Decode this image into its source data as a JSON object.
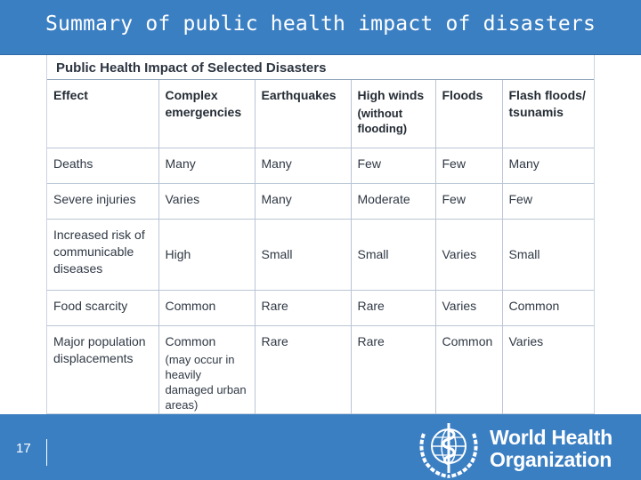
{
  "slide": {
    "title": "Summary of public health impact of disasters",
    "page_number": "17"
  },
  "table": {
    "caption": "Public Health Impact of Selected Disasters",
    "headers": [
      {
        "label": "Effect",
        "sub": ""
      },
      {
        "label": "Complex emergencies",
        "sub": ""
      },
      {
        "label": "Earthquakes",
        "sub": ""
      },
      {
        "label": "High winds",
        "sub": "(without flooding)"
      },
      {
        "label": "Floods",
        "sub": ""
      },
      {
        "label": "Flash floods/ tsunamis",
        "sub": ""
      }
    ],
    "rows": [
      {
        "effect": "Deaths",
        "values": [
          "Many",
          "Many",
          "Few",
          "Few",
          "Many"
        ]
      },
      {
        "effect": "Severe injuries",
        "values": [
          "Varies",
          "Many",
          "Moderate",
          "Few",
          "Few"
        ]
      },
      {
        "effect": "Increased risk of communicable diseases",
        "values": [
          "High",
          "Small",
          "Small",
          "Varies",
          "Small"
        ]
      },
      {
        "effect": "Food scarcity",
        "values": [
          "Common",
          "Rare",
          "Rare",
          "Varies",
          "Common"
        ]
      },
      {
        "effect": "Major population displacements",
        "values": [
          "Common",
          "Rare",
          "Rare",
          "Common",
          "Varies"
        ],
        "note": "(may occur in heavily damaged urban areas)"
      }
    ]
  },
  "logo": {
    "name": "who-emblem-icon",
    "line1": "World Health",
    "line2": "Organization"
  },
  "colors": {
    "header_blue": "#3b7fc3",
    "text_dark": "#2f3844",
    "rule": "#b9c6d4"
  }
}
